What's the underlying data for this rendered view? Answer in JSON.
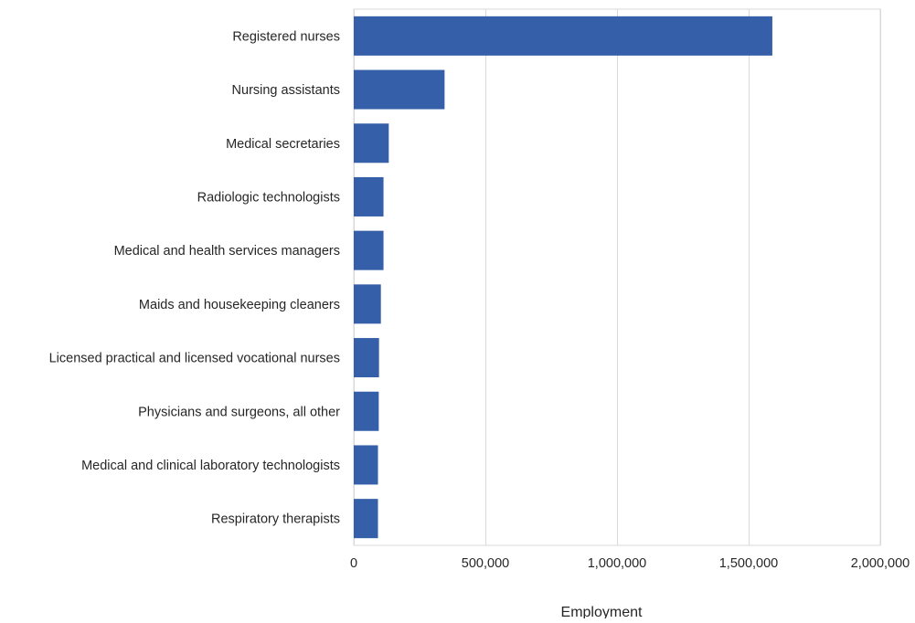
{
  "chart_data": {
    "type": "bar",
    "orientation": "horizontal",
    "categories": [
      "Registered nurses",
      "Nursing assistants",
      "Medical secretaries",
      "Radiologic technologists",
      "Medical and health services managers",
      "Maids and housekeeping cleaners",
      "Licensed practical and licensed vocational nurses",
      "Physicians and surgeons, all other",
      "Medical and clinical laboratory technologists",
      "Respiratory therapists"
    ],
    "values": [
      1590000,
      345000,
      133000,
      113000,
      113000,
      103000,
      96000,
      95000,
      92000,
      92000
    ],
    "xlim": [
      0,
      2000000
    ],
    "xticks": [
      0,
      500000,
      1000000,
      1500000,
      2000000
    ],
    "xtick_labels": [
      "0",
      "500,000",
      "1,000,000",
      "1,500,000",
      "2,000,000"
    ],
    "xlabel": "Employment",
    "ylabel": "",
    "title": "",
    "grid": "vertical",
    "legend": "none",
    "bar_color": "#355fa8",
    "grid_color": "#d9d9d9"
  }
}
